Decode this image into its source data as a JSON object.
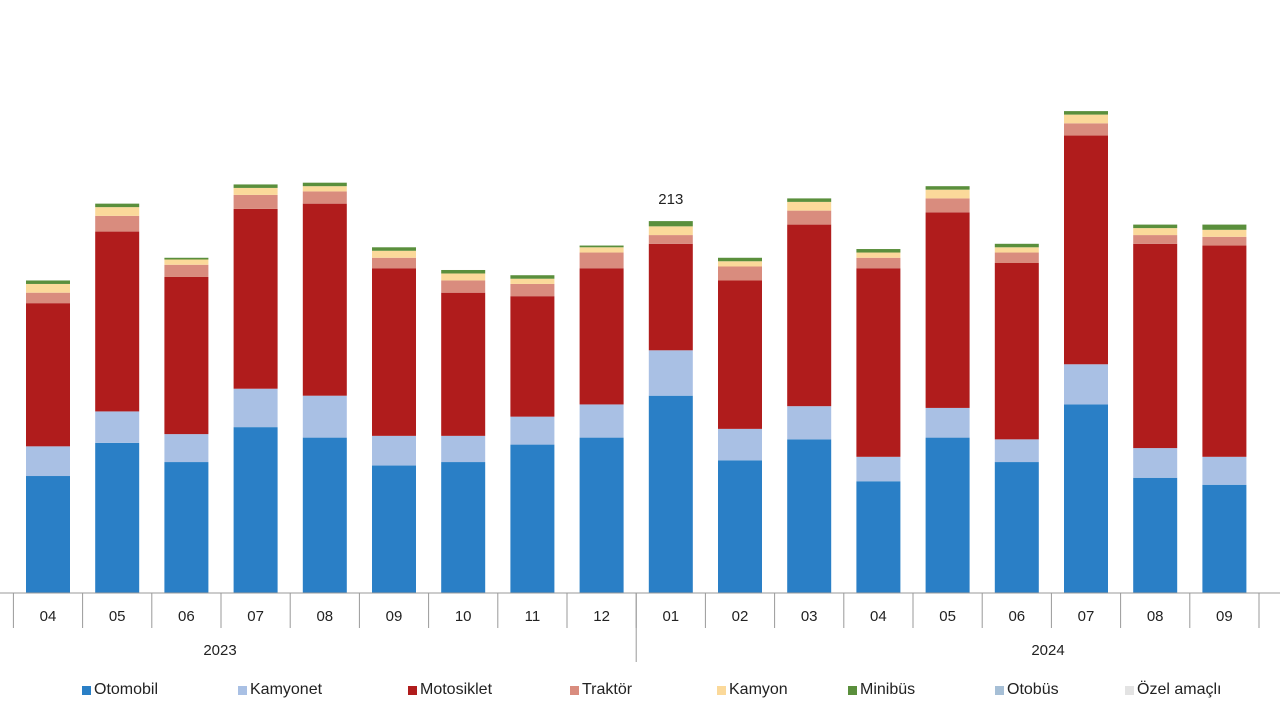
{
  "chart_data": {
    "type": "bar",
    "stacked": true,
    "title": "",
    "xlabel": "",
    "ylabel": "",
    "ylim": [
      0,
      340
    ],
    "grid": false,
    "legend_position": "bottom",
    "categories": [
      "04",
      "05",
      "06",
      "07",
      "08",
      "09",
      "10",
      "11",
      "12",
      "01",
      "02",
      "03",
      "04",
      "05",
      "06",
      "07",
      "08",
      "09"
    ],
    "year_groups": [
      {
        "label": "2023",
        "count": 9
      },
      {
        "label": "2024",
        "count": 9
      }
    ],
    "series": [
      {
        "name": "Otomobil",
        "color": "#2a7fc6",
        "values": [
          67,
          86,
          75,
          95,
          89,
          73,
          75,
          85,
          89,
          113,
          76,
          88,
          64,
          89,
          75,
          108,
          66,
          62
        ]
      },
      {
        "name": "Kamyonet",
        "color": "#a9c0e4",
        "values": [
          17,
          18,
          16,
          22,
          24,
          17,
          15,
          16,
          19,
          26,
          18,
          19,
          14,
          17,
          13,
          23,
          17,
          16
        ]
      },
      {
        "name": "Motosiklet",
        "color": "#b01c1c",
        "values": [
          82,
          103,
          90,
          103,
          110,
          96,
          82,
          69,
          78,
          61,
          85,
          104,
          108,
          112,
          101,
          131,
          117,
          121
        ]
      },
      {
        "name": "Traktör",
        "color": "#d98c7e",
        "values": [
          6,
          9,
          7,
          8,
          7,
          6,
          7,
          7,
          9,
          5,
          8,
          8,
          6,
          8,
          6,
          7,
          5,
          5
        ]
      },
      {
        "name": "Kamyon",
        "color": "#fbd99a",
        "values": [
          5,
          5,
          3,
          4,
          3,
          4,
          4,
          3,
          3,
          5,
          3,
          5,
          3,
          5,
          3,
          5,
          4,
          4
        ]
      },
      {
        "name": "Minibüs",
        "color": "#5a8f3c",
        "values": [
          2,
          2,
          1,
          2,
          2,
          2,
          2,
          2,
          1,
          3,
          2,
          2,
          2,
          2,
          2,
          2,
          2,
          3
        ]
      },
      {
        "name": "Otobüs",
        "color": "#a6bfd6",
        "values": [
          0,
          0,
          0,
          0,
          0,
          0,
          0,
          0,
          0,
          0,
          0,
          0,
          0,
          0,
          0,
          0,
          0,
          0
        ]
      },
      {
        "name": "Özel amaçlı",
        "color": "#e3e3e3",
        "values": [
          0,
          0,
          0,
          0,
          0,
          0,
          0,
          0,
          0,
          0,
          0,
          0,
          0,
          0,
          0,
          0,
          0,
          0
        ]
      }
    ],
    "annotations": [
      {
        "category_index": 9,
        "text": "213"
      }
    ]
  }
}
